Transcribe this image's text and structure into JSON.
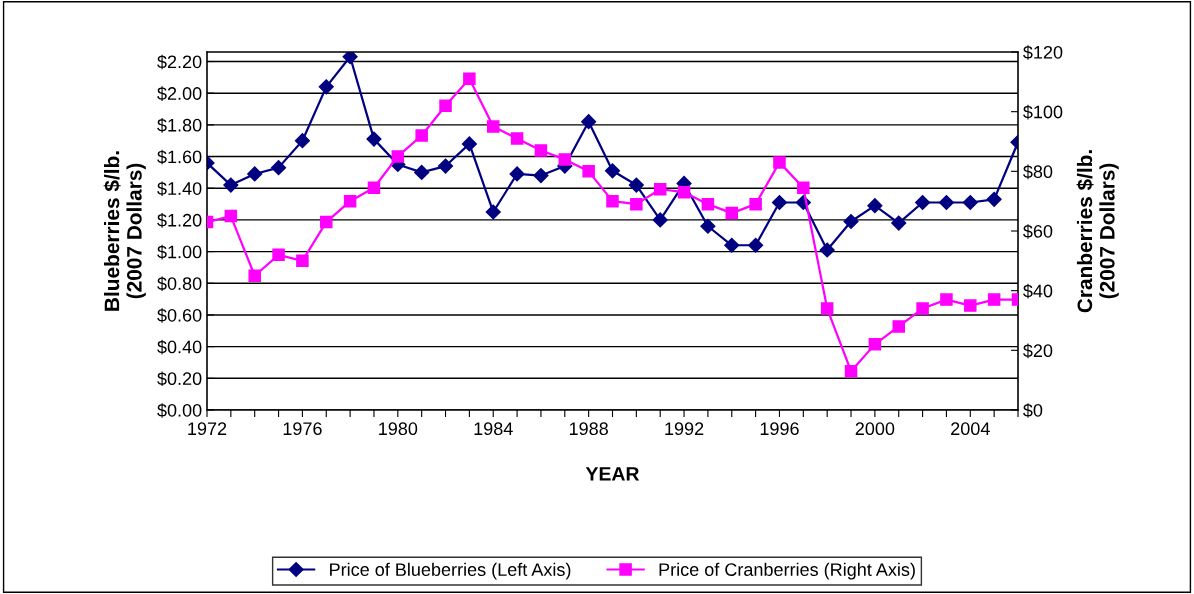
{
  "chart_data": {
    "type": "line",
    "xlabel": "YEAR",
    "ylabel": "Blueberries $/lb.\n(2007 Dollars)",
    "y2label": "Cranberries $/lb.\n(2007 Dollars)",
    "x": [
      1972,
      1973,
      1974,
      1975,
      1976,
      1977,
      1978,
      1979,
      1980,
      1981,
      1982,
      1983,
      1984,
      1985,
      1986,
      1987,
      1988,
      1989,
      1990,
      1991,
      1992,
      1993,
      1994,
      1995,
      1996,
      1997,
      1998,
      1999,
      2000,
      2001,
      2002,
      2003,
      2004,
      2005,
      2006
    ],
    "series": [
      {
        "name": "Price of Blueberries (Left Axis)",
        "color": "#000080",
        "marker": "diamond",
        "values": [
          1.56,
          1.42,
          1.49,
          1.53,
          1.7,
          2.04,
          2.23,
          1.71,
          1.55,
          1.5,
          1.54,
          1.68,
          1.25,
          1.49,
          1.48,
          1.54,
          1.82,
          1.51,
          1.42,
          1.2,
          1.43,
          1.16,
          1.04,
          1.04,
          1.31,
          1.31,
          1.01,
          1.19,
          1.29,
          1.18,
          1.31,
          1.31,
          1.31,
          1.33,
          1.69
        ]
      },
      {
        "name": "Price of Cranberries (Right Axis)",
        "color": "#ff00ff",
        "marker": "square",
        "axis": "y2",
        "values": [
          63,
          65,
          45,
          52,
          50,
          63,
          70,
          74.5,
          85,
          92,
          102,
          111,
          95,
          91,
          87,
          84,
          80,
          70,
          69,
          74,
          73,
          69,
          66,
          69,
          83,
          74.5,
          34,
          13,
          22,
          28,
          34,
          37,
          35,
          37,
          37
        ]
      }
    ],
    "xlim": [
      1972,
      2006
    ],
    "xticks": [
      1972,
      {
        "value": 1973,
        "label": null
      },
      {
        "value": 1974,
        "label": null
      },
      {
        "value": 1975,
        "label": null
      },
      1976,
      {
        "value": 1977,
        "label": null
      },
      {
        "value": 1978,
        "label": null
      },
      {
        "value": 1979,
        "label": null
      },
      1980,
      {
        "value": 1981,
        "label": null
      },
      {
        "value": 1982,
        "label": null
      },
      {
        "value": 1983,
        "label": null
      },
      1984,
      {
        "value": 1985,
        "label": null
      },
      {
        "value": 1986,
        "label": null
      },
      {
        "value": 1987,
        "label": null
      },
      1988,
      {
        "value": 1989,
        "label": null
      },
      {
        "value": 1990,
        "label": null
      },
      {
        "value": 1991,
        "label": null
      },
      1992,
      {
        "value": 1993,
        "label": null
      },
      {
        "value": 1994,
        "label": null
      },
      {
        "value": 1995,
        "label": null
      },
      1996,
      {
        "value": 1997,
        "label": null
      },
      {
        "value": 1998,
        "label": null
      },
      {
        "value": 1999,
        "label": null
      },
      2000,
      {
        "value": 2001,
        "label": null
      },
      {
        "value": 2002,
        "label": null
      },
      {
        "value": 2003,
        "label": null
      },
      2004,
      {
        "value": 2005,
        "label": null
      },
      {
        "value": 2006,
        "label": null
      }
    ],
    "ylim": [
      0,
      2.26
    ],
    "yticks": [
      {
        "value": 0,
        "label": "$0.00"
      },
      {
        "value": 0.2,
        "label": "$0.20"
      },
      {
        "value": 0.4,
        "label": "$0.40"
      },
      {
        "value": 0.6,
        "label": "$0.60"
      },
      {
        "value": 0.8,
        "label": "$0.80"
      },
      {
        "value": 1.0,
        "label": "$1.00"
      },
      {
        "value": 1.2,
        "label": "$1.20"
      },
      {
        "value": 1.4,
        "label": "$1.40"
      },
      {
        "value": 1.6,
        "label": "$1.60"
      },
      {
        "value": 1.8,
        "label": "$1.80"
      },
      {
        "value": 2.0,
        "label": "$2.00"
      },
      {
        "value": 2.2,
        "label": "$2.20"
      }
    ],
    "y2lim": [
      0,
      120
    ],
    "y2ticks": [
      {
        "value": 0,
        "label": "$0"
      },
      {
        "value": 20,
        "label": "$20"
      },
      {
        "value": 40,
        "label": "$40"
      },
      {
        "value": 60,
        "label": "$60"
      },
      {
        "value": 80,
        "label": "$80"
      },
      {
        "value": 100,
        "label": "$100"
      },
      {
        "value": 120,
        "label": "$120"
      }
    ],
    "grid": "y",
    "legend": "bottom",
    "line_style": "solid"
  }
}
